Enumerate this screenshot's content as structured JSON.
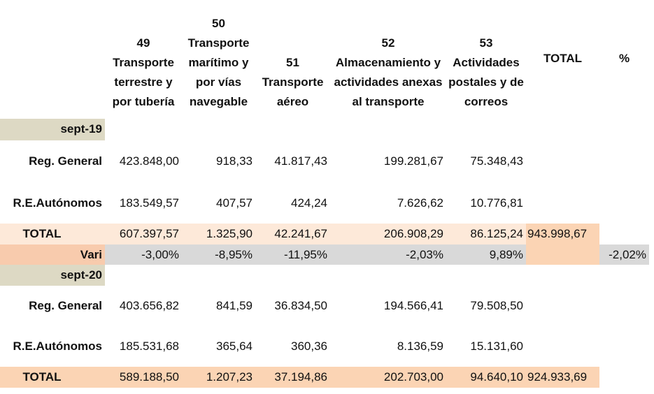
{
  "headers": [
    "49\nTransporte terrestre y por tubería",
    "50\nTransporte marítimo y por vías navegable",
    "51\nTransporte aéreo",
    "52\nAlmacenamiento y actividades anexas al transporte",
    "53\nActividades postales y de correos",
    "TOTAL",
    "%"
  ],
  "sept19": {
    "label": "sept-19",
    "reg_general": {
      "label": "Reg. General",
      "values": [
        "423.848,00",
        "918,33",
        "41.817,43",
        "199.281,67",
        "75.348,43"
      ]
    },
    "autonomos": {
      "label": "R.E.Autónomos",
      "values": [
        "183.549,57",
        "407,57",
        "424,24",
        "7.626,62",
        "10.776,81"
      ]
    },
    "total": {
      "label": "TOTAL",
      "values": [
        "607.397,57",
        "1.325,90",
        "42.241,67",
        "206.908,29",
        "86.125,24",
        "943.998,67"
      ]
    }
  },
  "variation": {
    "label": "Vari",
    "values": [
      "-3,00%",
      "-8,95%",
      "-11,95%",
      "-2,03%",
      "9,89%"
    ],
    "total_pct": "-2,02%"
  },
  "sept20": {
    "label": "sept-20",
    "reg_general": {
      "label": "Reg. General",
      "values": [
        "403.656,82",
        "841,59",
        "36.834,50",
        "194.566,41",
        "79.508,50"
      ]
    },
    "autonomos": {
      "label": "R.E.Autónomos",
      "values": [
        "185.531,68",
        "365,64",
        "360,36",
        "8.136,59",
        "15.131,60"
      ]
    },
    "total": {
      "label": "TOTAL",
      "values": [
        "589.188,50",
        "1.207,23",
        "37.194,86",
        "202.703,00",
        "94.640,10",
        "924.933,69"
      ]
    }
  }
}
